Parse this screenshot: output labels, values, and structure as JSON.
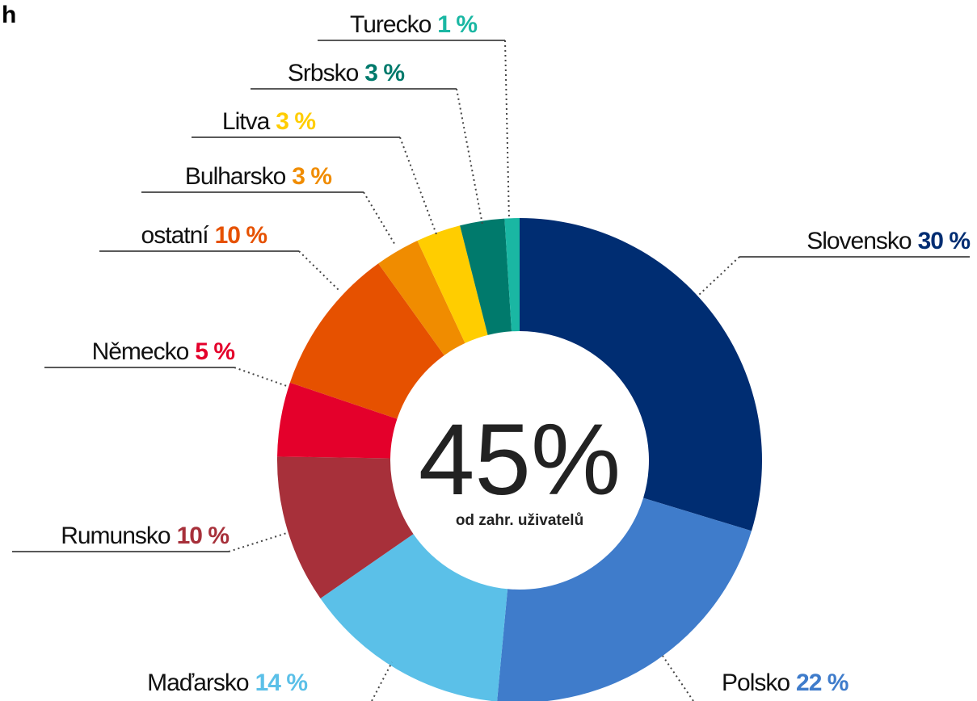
{
  "chart_data": {
    "type": "pie",
    "corner_text": "h",
    "center_label": "45%",
    "center_sublabel": "od zahr. uživatelů",
    "categories": [
      "Slovensko",
      "Polsko",
      "Maďarsko",
      "Rumunsko",
      "Německo",
      "ostatní",
      "Bulharsko",
      "Litva",
      "Srbsko",
      "Turecko"
    ],
    "values": [
      30,
      22,
      14,
      10,
      5,
      10,
      3,
      3,
      3,
      1
    ],
    "value_labels": [
      "30 %",
      "22 %",
      "14 %",
      "10 %",
      "5 %",
      "10 %",
      "3 %",
      "3 %",
      "3 %",
      "1 %"
    ],
    "colors": [
      "#002d72",
      "#3f7ccb",
      "#5bc0e8",
      "#a7303a",
      "#e4002b",
      "#e65100",
      "#f08c00",
      "#ffcd00",
      "#007a6c",
      "#1ab7a3"
    ]
  }
}
